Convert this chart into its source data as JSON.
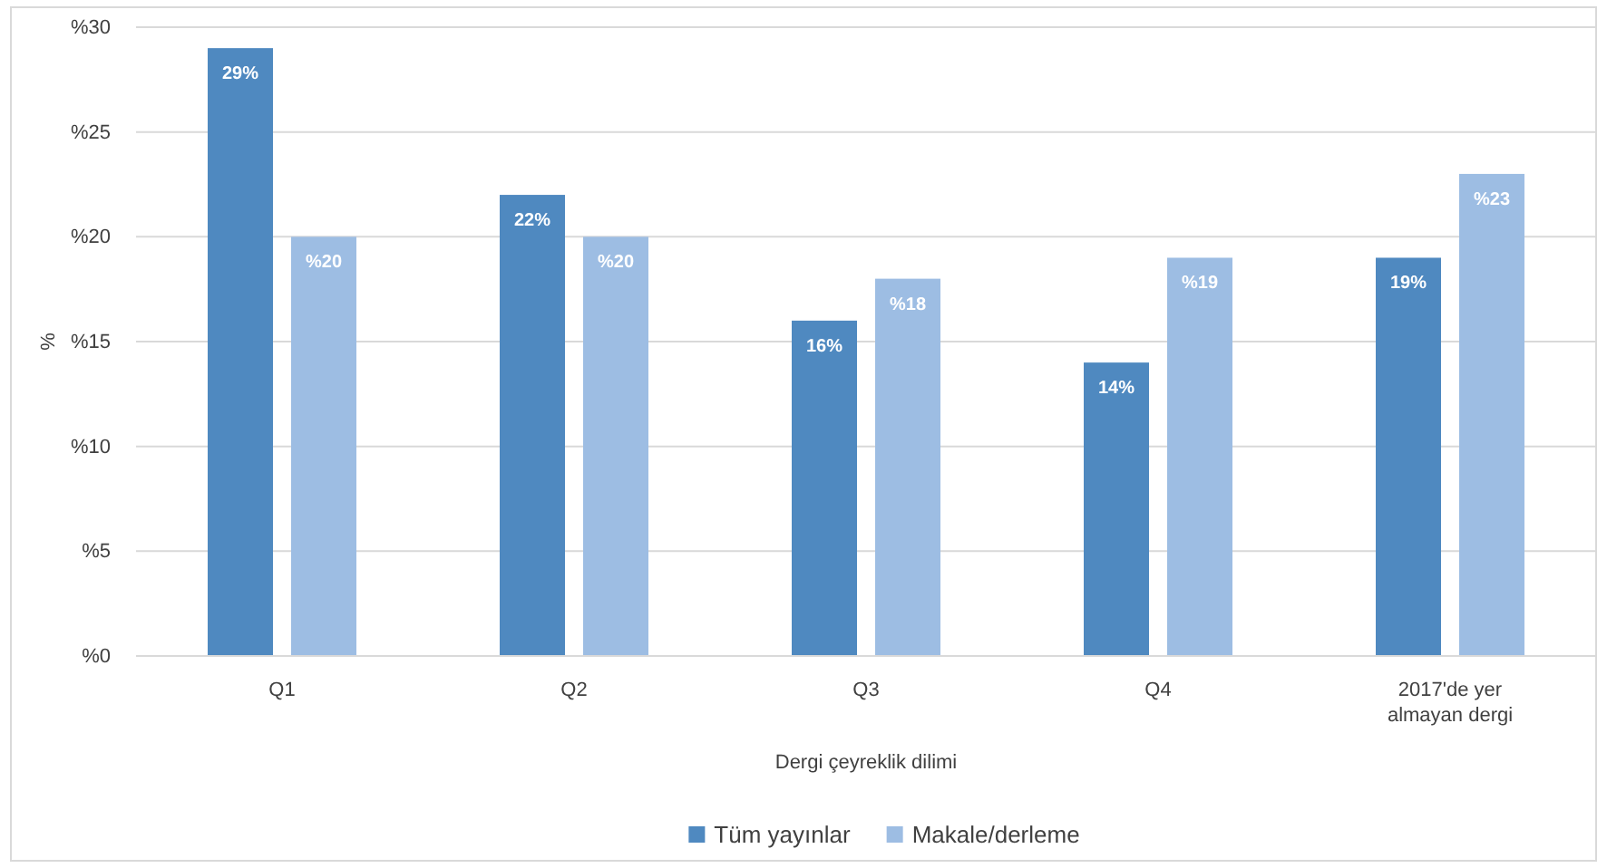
{
  "chart_data": {
    "type": "bar",
    "xlabel": "Dergi çeyreklik dilimi",
    "ylabel": "%",
    "categories": [
      "Q1",
      "Q2",
      "Q3",
      "Q4",
      "2017'de yer almayan dergi"
    ],
    "series": [
      {
        "name": "Tüm yayınlar",
        "color": "#4f89c0",
        "values": [
          29,
          22,
          16,
          14,
          19
        ],
        "value_labels": [
          "29%",
          "22%",
          "16%",
          "14%",
          "19%"
        ]
      },
      {
        "name": "Makale/derleme",
        "color": "#9dbde3",
        "values": [
          20,
          20,
          18,
          19,
          23
        ],
        "value_labels": [
          "%20",
          "%20",
          "%18",
          "%19",
          "%23"
        ]
      }
    ],
    "ylim": [
      0,
      30
    ],
    "yticks": [
      {
        "value": 0,
        "label": "%0"
      },
      {
        "value": 5,
        "label": "%5"
      },
      {
        "value": 10,
        "label": "%10"
      },
      {
        "value": 15,
        "label": "%15"
      },
      {
        "value": 20,
        "label": "%20"
      },
      {
        "value": 25,
        "label": "%25"
      },
      {
        "value": 30,
        "label": "%30"
      }
    ],
    "grid": "y",
    "legend": "bottom"
  }
}
